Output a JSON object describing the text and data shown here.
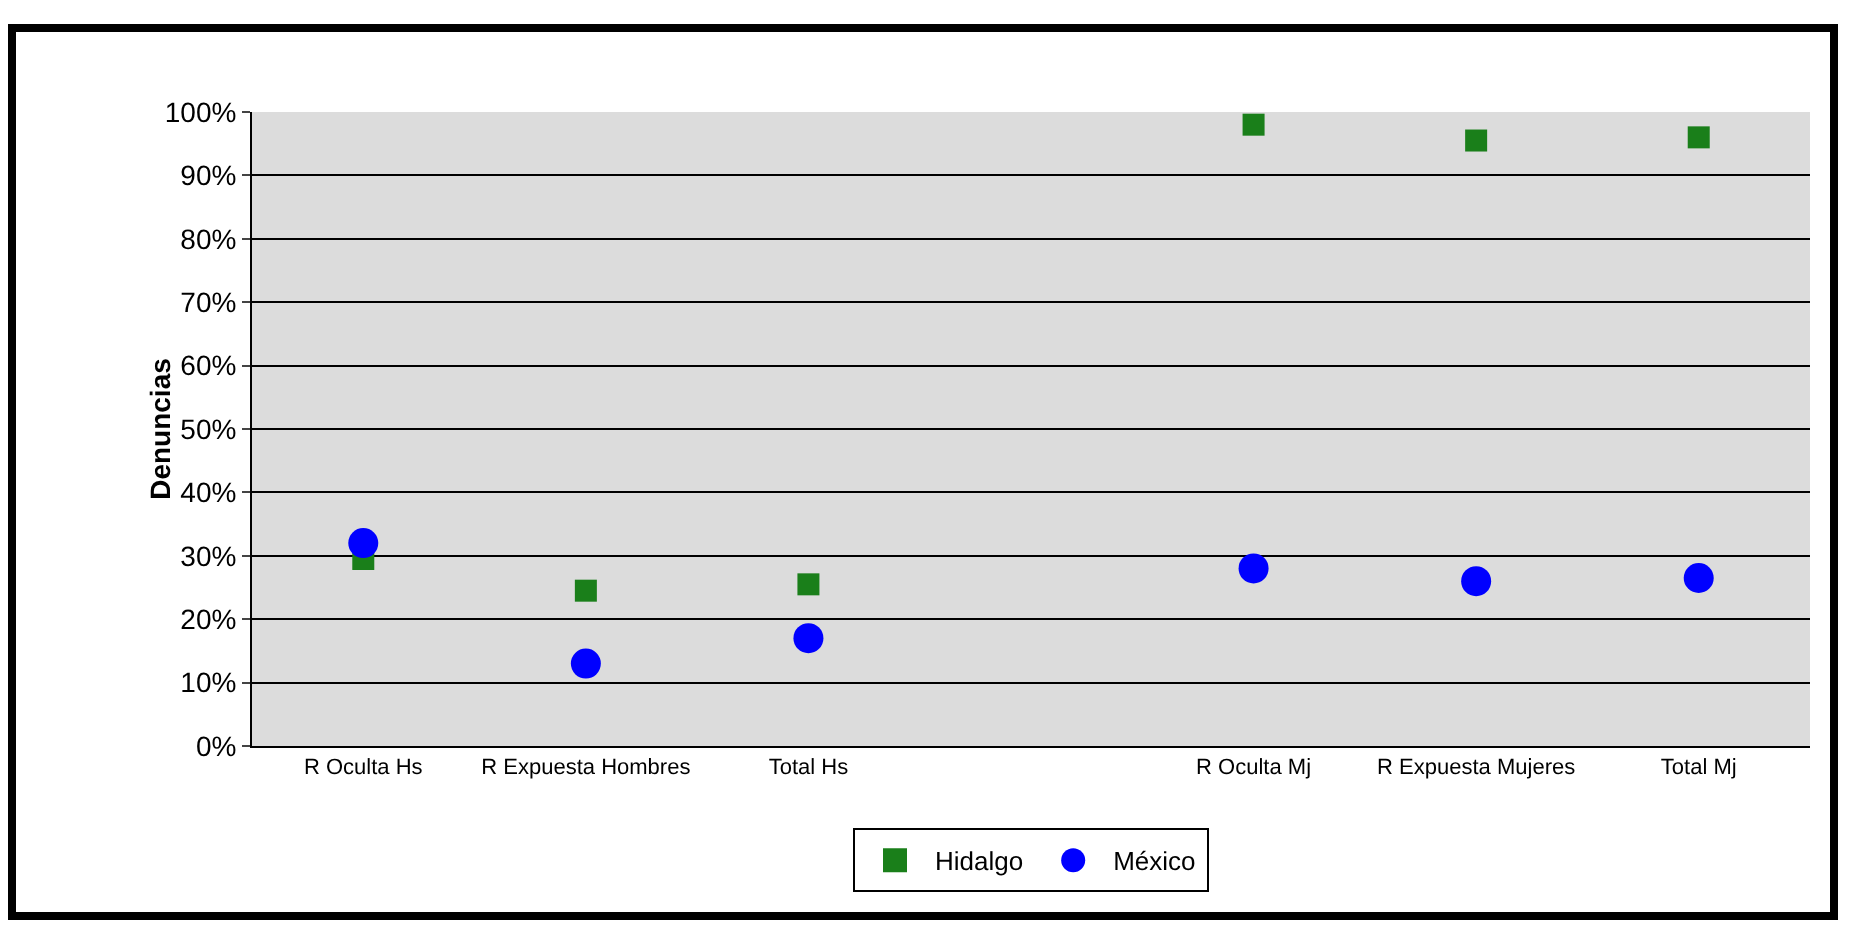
{
  "chart_data": {
    "type": "scatter",
    "ylabel": "Denuncias",
    "categories": [
      "R Oculta Hs",
      "R Expuesta Hombres",
      "Total Hs",
      null,
      "R Oculta Mj",
      "R Expuesta Mujeres",
      "Total Mj"
    ],
    "series": [
      {
        "name": "Hidalgo",
        "color": "#1a7f1a",
        "marker": "square",
        "values": [
          29.5,
          24.5,
          25.5,
          null,
          98,
          95.5,
          96
        ]
      },
      {
        "name": "México",
        "color": "#0000ff",
        "marker": "circle",
        "values": [
          32,
          13,
          17,
          null,
          28,
          26,
          26.5
        ]
      }
    ],
    "ylim": [
      0,
      100
    ],
    "yticks": [
      {
        "value": 0,
        "label": "0%"
      },
      {
        "value": 10,
        "label": "10%"
      },
      {
        "value": 20,
        "label": "20%"
      },
      {
        "value": 30,
        "label": "30%"
      },
      {
        "value": 40,
        "label": "40%"
      },
      {
        "value": 50,
        "label": "50%"
      },
      {
        "value": 60,
        "label": "60%"
      },
      {
        "value": 70,
        "label": "70%"
      },
      {
        "value": 80,
        "label": "80%"
      },
      {
        "value": 90,
        "label": "90%"
      },
      {
        "value": 100,
        "label": "100%"
      }
    ],
    "grid": "y",
    "legend": "bottom"
  }
}
